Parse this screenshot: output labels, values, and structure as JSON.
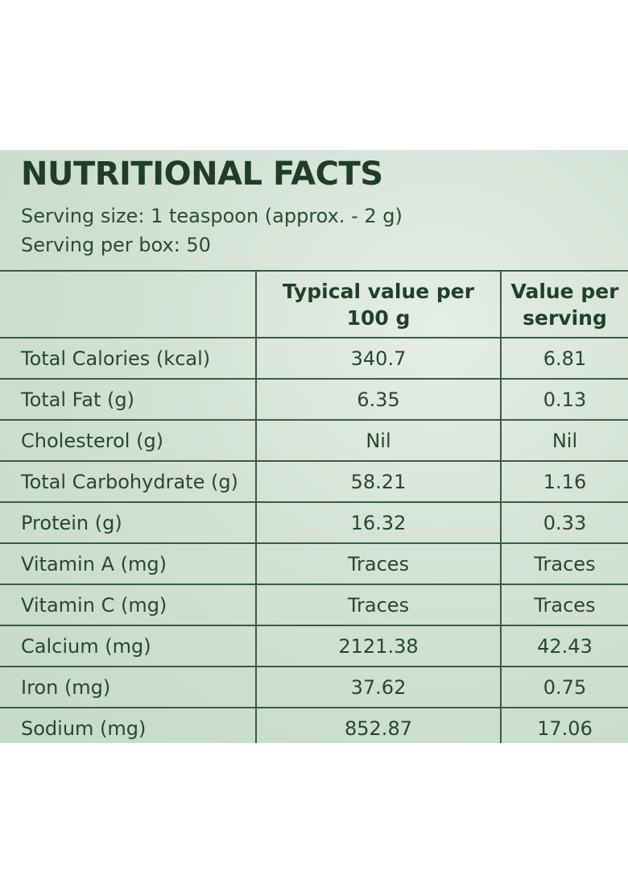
{
  "title": "NUTRITIONAL FACTS",
  "serving_size": "Serving size: 1 teaspoon (approx. - 2 g)",
  "serving_per_box": "Serving per box: 50",
  "table": {
    "headers": {
      "nutrient": "",
      "per_100g_line1": "Typical value per",
      "per_100g_line2": "100 g",
      "per_serving_line1": "Value per",
      "per_serving_line2": "serving"
    },
    "rows": [
      {
        "nutrient": "Total Calories (kcal)",
        "per_100g": "340.7",
        "per_serving": "6.81"
      },
      {
        "nutrient": "Total Fat (g)",
        "per_100g": "6.35",
        "per_serving": "0.13"
      },
      {
        "nutrient": "Cholesterol (g)",
        "per_100g": "Nil",
        "per_serving": "Nil"
      },
      {
        "nutrient": "Total Carbohydrate (g)",
        "per_100g": "58.21",
        "per_serving": "1.16"
      },
      {
        "nutrient": "Protein (g)",
        "per_100g": "16.32",
        "per_serving": "0.33"
      },
      {
        "nutrient": "Vitamin A (mg)",
        "per_100g": "Traces",
        "per_serving": "Traces"
      },
      {
        "nutrient": "Vitamin C (mg)",
        "per_100g": "Traces",
        "per_serving": "Traces"
      },
      {
        "nutrient": "Calcium (mg)",
        "per_100g": "2121.38",
        "per_serving": "42.43"
      },
      {
        "nutrient": "Iron (mg)",
        "per_100g": "37.62",
        "per_serving": "0.75"
      },
      {
        "nutrient": "Sodium (mg)",
        "per_100g": "852.87",
        "per_serving": "17.06"
      }
    ]
  },
  "colors": {
    "text": "#243f2d",
    "rule": "#3d5a46",
    "background": "#d2e2d5"
  }
}
